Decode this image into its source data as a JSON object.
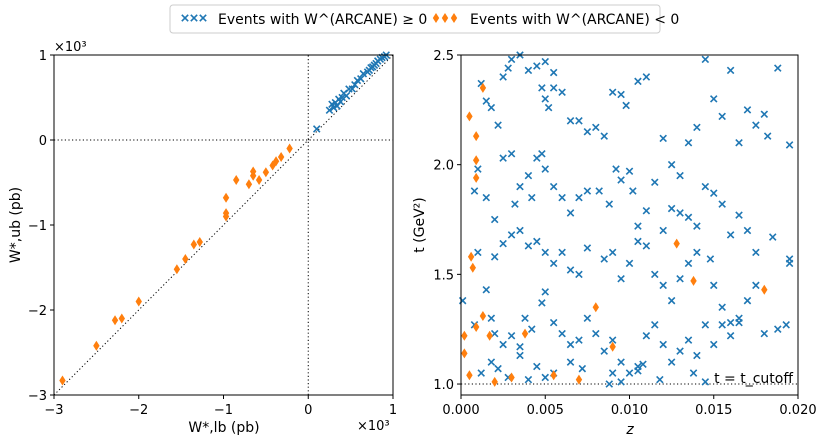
{
  "legend": {
    "entries": [
      {
        "label": "Events with W^(ARCANE) ≥ 0",
        "marker": "x",
        "color": "#1f77b4"
      },
      {
        "label": "Events with W^(ARCANE) < 0",
        "marker": "diamond",
        "color": "#ff7f0e"
      }
    ]
  },
  "colors": {
    "positive": "#1f77b4",
    "negative": "#ff7f0e"
  },
  "chart_data": [
    {
      "type": "scatter",
      "xlabel": "W*,lb (pb)",
      "ylabel": "W*,ub (pb)",
      "x_multiplier": "×10³",
      "y_multiplier": "×10³",
      "xlim": [
        -3,
        1
      ],
      "ylim": [
        -3,
        1
      ],
      "xticks": [
        -3,
        -2,
        -1,
        0,
        1
      ],
      "yticks": [
        -3,
        -2,
        -1,
        0,
        1
      ],
      "xtick_labels": [
        "−3",
        "−2",
        "−1",
        "0",
        "1"
      ],
      "ytick_labels": [
        "−3",
        "−2",
        "−1",
        "0",
        "1"
      ],
      "reference_lines": [
        "x = 0 (dotted)",
        "y = 0 (dotted)",
        "y = x (dotted)"
      ],
      "series": [
        {
          "name": "Events with W^(ARCANE) ≥ 0",
          "marker": "x",
          "points": [
            [
              0.1,
              0.13
            ],
            [
              0.25,
              0.35
            ],
            [
              0.28,
              0.42
            ],
            [
              0.3,
              0.38
            ],
            [
              0.32,
              0.44
            ],
            [
              0.34,
              0.4
            ],
            [
              0.36,
              0.48
            ],
            [
              0.38,
              0.45
            ],
            [
              0.4,
              0.5
            ],
            [
              0.42,
              0.55
            ],
            [
              0.45,
              0.52
            ],
            [
              0.48,
              0.6
            ],
            [
              0.52,
              0.6
            ],
            [
              0.55,
              0.65
            ],
            [
              0.58,
              0.7
            ],
            [
              0.62,
              0.72
            ],
            [
              0.65,
              0.78
            ],
            [
              0.7,
              0.8
            ],
            [
              0.74,
              0.85
            ],
            [
              0.78,
              0.88
            ],
            [
              0.8,
              0.9
            ],
            [
              0.82,
              0.93
            ],
            [
              0.85,
              0.95
            ],
            [
              0.87,
              0.97
            ],
            [
              0.9,
              0.98
            ],
            [
              0.92,
              1.0
            ],
            [
              0.76,
              0.86
            ],
            [
              0.72,
              0.82
            ]
          ]
        },
        {
          "name": "Events with W^(ARCANE) < 0",
          "marker": "diamond",
          "points": [
            [
              -2.9,
              -2.83
            ],
            [
              -2.5,
              -2.42
            ],
            [
              -2.28,
              -2.12
            ],
            [
              -2.2,
              -2.1
            ],
            [
              -2.0,
              -1.9
            ],
            [
              -1.55,
              -1.52
            ],
            [
              -1.45,
              -1.4
            ],
            [
              -1.35,
              -1.23
            ],
            [
              -1.28,
              -1.2
            ],
            [
              -0.97,
              -0.9
            ],
            [
              -0.97,
              -0.86
            ],
            [
              -0.97,
              -0.68
            ],
            [
              -0.85,
              -0.47
            ],
            [
              -0.7,
              -0.52
            ],
            [
              -0.65,
              -0.42
            ],
            [
              -0.65,
              -0.37
            ],
            [
              -0.58,
              -0.47
            ],
            [
              -0.5,
              -0.38
            ],
            [
              -0.42,
              -0.3
            ],
            [
              -0.38,
              -0.25
            ],
            [
              -0.32,
              -0.2
            ],
            [
              -0.22,
              -0.1
            ]
          ]
        }
      ]
    },
    {
      "type": "scatter",
      "xlabel": "z",
      "ylabel": "t (GeV²)",
      "xlim": [
        0,
        0.02
      ],
      "ylim": [
        0.95,
        2.5
      ],
      "xticks": [
        0,
        0.005,
        0.01,
        0.015,
        0.02
      ],
      "yticks": [
        1.0,
        1.5,
        2.0,
        2.5
      ],
      "xtick_labels": [
        "0.000",
        "0.005",
        "0.010",
        "0.015",
        "0.020"
      ],
      "ytick_labels": [
        "1.0",
        "1.5",
        "2.0",
        "2.5"
      ],
      "reference_lines": [
        "t = 1.0 (dotted)"
      ],
      "annotation": "t = t_cutoff",
      "series": [
        {
          "name": "Events with W^(ARCANE) ≥ 0",
          "marker": "x",
          "points": [
            [
              0.0012,
              2.37
            ],
            [
              0.0015,
              2.29
            ],
            [
              0.0018,
              2.26
            ],
            [
              0.0022,
              2.18
            ],
            [
              0.0025,
              2.4
            ],
            [
              0.0028,
              2.44
            ],
            [
              0.003,
              2.48
            ],
            [
              0.0035,
              2.5
            ],
            [
              0.004,
              2.43
            ],
            [
              0.0045,
              2.45
            ],
            [
              0.005,
              2.47
            ],
            [
              0.0055,
              2.42
            ],
            [
              0.0048,
              2.35
            ],
            [
              0.005,
              2.3
            ],
            [
              0.0052,
              2.26
            ],
            [
              0.0055,
              2.35
            ],
            [
              0.006,
              2.33
            ],
            [
              0.0065,
              2.2
            ],
            [
              0.007,
              2.2
            ],
            [
              0.0075,
              2.15
            ],
            [
              0.008,
              2.17
            ],
            [
              0.0085,
              2.13
            ],
            [
              0.009,
              2.33
            ],
            [
              0.0095,
              2.32
            ],
            [
              0.0098,
              2.27
            ],
            [
              0.0105,
              2.38
            ],
            [
              0.011,
              2.4
            ],
            [
              0.012,
              2.12
            ],
            [
              0.0125,
              2.0
            ],
            [
              0.013,
              1.95
            ],
            [
              0.0135,
              2.1
            ],
            [
              0.014,
              2.17
            ],
            [
              0.0145,
              2.48
            ],
            [
              0.015,
              2.3
            ],
            [
              0.0155,
              2.22
            ],
            [
              0.016,
              2.43
            ],
            [
              0.0165,
              2.1
            ],
            [
              0.017,
              2.25
            ],
            [
              0.0175,
              2.18
            ],
            [
              0.018,
              2.23
            ],
            [
              0.0182,
              2.13
            ],
            [
              0.0188,
              2.44
            ],
            [
              0.0195,
              2.09
            ],
            [
              0.0008,
              1.88
            ],
            [
              0.001,
              1.98
            ],
            [
              0.0015,
              1.85
            ],
            [
              0.002,
              1.75
            ],
            [
              0.0025,
              2.03
            ],
            [
              0.003,
              2.05
            ],
            [
              0.0032,
              1.82
            ],
            [
              0.0035,
              1.9
            ],
            [
              0.004,
              1.95
            ],
            [
              0.0042,
              1.85
            ],
            [
              0.0045,
              2.03
            ],
            [
              0.0048,
              2.05
            ],
            [
              0.005,
              1.98
            ],
            [
              0.0055,
              1.9
            ],
            [
              0.006,
              1.85
            ],
            [
              0.0065,
              1.78
            ],
            [
              0.007,
              1.85
            ],
            [
              0.0075,
              1.88
            ],
            [
              0.0082,
              1.88
            ],
            [
              0.0088,
              1.82
            ],
            [
              0.0092,
              1.98
            ],
            [
              0.0095,
              1.93
            ],
            [
              0.01,
              1.97
            ],
            [
              0.0102,
              1.88
            ],
            [
              0.0105,
              1.72
            ],
            [
              0.011,
              1.79
            ],
            [
              0.0115,
              1.92
            ],
            [
              0.012,
              1.7
            ],
            [
              0.0125,
              1.8
            ],
            [
              0.013,
              1.78
            ],
            [
              0.0135,
              1.76
            ],
            [
              0.014,
              1.72
            ],
            [
              0.0145,
              1.9
            ],
            [
              0.015,
              1.87
            ],
            [
              0.0155,
              1.82
            ],
            [
              0.016,
              1.68
            ],
            [
              0.0165,
              1.77
            ],
            [
              0.017,
              1.7
            ],
            [
              0.0175,
              1.6
            ],
            [
              0.0185,
              1.67
            ],
            [
              0.0195,
              1.55
            ],
            [
              0.0195,
              1.57
            ],
            [
              0.001,
              1.6
            ],
            [
              0.002,
              1.58
            ],
            [
              0.0025,
              1.64
            ],
            [
              0.003,
              1.68
            ],
            [
              0.0035,
              1.7
            ],
            [
              0.004,
              1.63
            ],
            [
              0.0045,
              1.65
            ],
            [
              0.005,
              1.6
            ],
            [
              0.0055,
              1.55
            ],
            [
              0.006,
              1.6
            ],
            [
              0.0065,
              1.52
            ],
            [
              0.007,
              1.5
            ],
            [
              0.0075,
              1.62
            ],
            [
              0.0085,
              1.57
            ],
            [
              0.009,
              1.6
            ],
            [
              0.0095,
              1.48
            ],
            [
              0.01,
              1.55
            ],
            [
              0.0105,
              1.65
            ],
            [
              0.011,
              1.63
            ],
            [
              0.0115,
              1.5
            ],
            [
              0.012,
              1.45
            ],
            [
              0.0125,
              1.38
            ],
            [
              0.013,
              1.48
            ],
            [
              0.0135,
              1.55
            ],
            [
              0.014,
              1.6
            ],
            [
              0.0148,
              1.57
            ],
            [
              0.015,
              1.45
            ],
            [
              0.0155,
              1.35
            ],
            [
              0.016,
              1.28
            ],
            [
              0.0165,
              1.3
            ],
            [
              0.017,
              1.38
            ],
            [
              0.0175,
              1.45
            ],
            [
              0.0001,
              1.38
            ],
            [
              0.0008,
              1.27
            ],
            [
              0.0015,
              1.43
            ],
            [
              0.0018,
              1.3
            ],
            [
              0.002,
              1.23
            ],
            [
              0.0025,
              1.18
            ],
            [
              0.003,
              1.22
            ],
            [
              0.0035,
              1.17
            ],
            [
              0.0038,
              1.3
            ],
            [
              0.0042,
              1.25
            ],
            [
              0.0048,
              1.37
            ],
            [
              0.005,
              1.42
            ],
            [
              0.0055,
              1.28
            ],
            [
              0.006,
              1.23
            ],
            [
              0.0065,
              1.18
            ],
            [
              0.007,
              1.2
            ],
            [
              0.0075,
              1.3
            ],
            [
              0.008,
              1.23
            ],
            [
              0.0085,
              1.15
            ],
            [
              0.009,
              1.2
            ],
            [
              0.0095,
              1.1
            ],
            [
              0.01,
              1.05
            ],
            [
              0.0105,
              1.08
            ],
            [
              0.011,
              1.22
            ],
            [
              0.0115,
              1.27
            ],
            [
              0.012,
              1.18
            ],
            [
              0.0125,
              1.1
            ],
            [
              0.013,
              1.15
            ],
            [
              0.0135,
              1.2
            ],
            [
              0.014,
              1.13
            ],
            [
              0.0145,
              1.27
            ],
            [
              0.015,
              1.18
            ],
            [
              0.0155,
              1.27
            ],
            [
              0.016,
              1.22
            ],
            [
              0.0165,
              1.28
            ],
            [
              0.018,
              1.23
            ],
            [
              0.0188,
              1.25
            ],
            [
              0.0193,
              1.27
            ],
            [
              0.0012,
              1.05
            ],
            [
              0.0018,
              1.1
            ],
            [
              0.0022,
              1.07
            ],
            [
              0.0028,
              1.03
            ],
            [
              0.0035,
              1.13
            ],
            [
              0.004,
              1.02
            ],
            [
              0.0045,
              1.08
            ],
            [
              0.005,
              1.03
            ],
            [
              0.0055,
              1.05
            ],
            [
              0.0065,
              1.1
            ],
            [
              0.0072,
              1.07
            ],
            [
              0.0088,
              1.0
            ],
            [
              0.009,
              1.05
            ],
            [
              0.0095,
              1.01
            ],
            [
              0.0105,
              1.06
            ],
            [
              0.0108,
              1.09
            ],
            [
              0.0118,
              1.02
            ],
            [
              0.0138,
              1.05
            ],
            [
              0.0145,
              1.01
            ]
          ]
        },
        {
          "name": "Events with W^(ARCANE) < 0",
          "marker": "diamond",
          "points": [
            [
              0.0005,
              2.22
            ],
            [
              0.0009,
              2.13
            ],
            [
              0.0009,
              2.02
            ],
            [
              0.0009,
              1.94
            ],
            [
              0.0013,
              2.35
            ],
            [
              0.0006,
              1.58
            ],
            [
              0.0007,
              1.53
            ],
            [
              0.0013,
              1.31
            ],
            [
              0.0009,
              1.26
            ],
            [
              0.0002,
              1.22
            ],
            [
              0.0002,
              1.14
            ],
            [
              0.0005,
              1.04
            ],
            [
              0.0017,
              1.22
            ],
            [
              0.002,
              1.01
            ],
            [
              0.003,
              1.03
            ],
            [
              0.0038,
              1.23
            ],
            [
              0.0055,
              1.04
            ],
            [
              0.007,
              1.02
            ],
            [
              0.008,
              1.35
            ],
            [
              0.009,
              1.17
            ],
            [
              0.0128,
              1.64
            ],
            [
              0.0138,
              1.47
            ],
            [
              0.018,
              1.43
            ]
          ]
        }
      ]
    }
  ]
}
